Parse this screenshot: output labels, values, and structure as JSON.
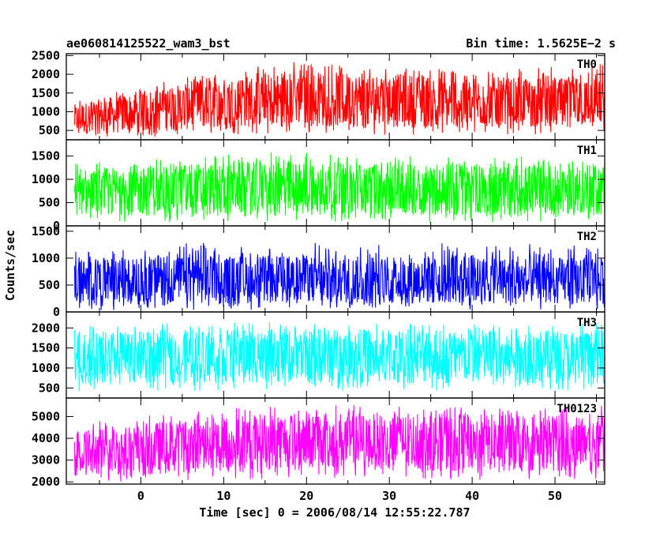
{
  "header": {
    "title": "ae060814125522_wam3_bst",
    "bin_time": "Bin time: 1.5625E−2 s"
  },
  "chart_data": {
    "type": "line",
    "title": "ae060814125522_wam3_bst",
    "xlabel": "Time [sec] 0 = 2006/08/14 12:55:22.787",
    "ylabel": "Counts/sec",
    "xlim": [
      -9,
      56
    ],
    "x_range": [
      -8,
      56
    ],
    "x_ticks": [
      0,
      10,
      20,
      30,
      40,
      50
    ],
    "x_tick_labels": [
      "0",
      "10",
      "20",
      "30",
      "40",
      "50"
    ],
    "grid": false,
    "panels": [
      {
        "name": "TH0",
        "color": "#ff0000",
        "ylim": [
          250,
          2550
        ],
        "y_ticks": [
          500,
          1000,
          1500,
          2000,
          2500
        ],
        "y_tick_labels": [
          "500",
          "1000",
          "1500",
          "2000",
          "2500"
        ],
        "envelope_x": [
          -8,
          0,
          10,
          20,
          30,
          40,
          50,
          56
        ],
        "envelope_low": [
          280,
          300,
          380,
          420,
          380,
          400,
          390,
          450
        ],
        "envelope_mean": [
          800,
          1000,
          1250,
          1350,
          1300,
          1250,
          1230,
          1250
        ],
        "envelope_high": [
          1300,
          1700,
          2100,
          2400,
          2200,
          2150,
          2200,
          2300
        ]
      },
      {
        "name": "TH1",
        "color": "#00ff00",
        "ylim": [
          0,
          1850
        ],
        "y_ticks": [
          0,
          500,
          1000,
          1500
        ],
        "y_tick_labels": [
          "0",
          "500",
          "1000",
          "1500"
        ],
        "envelope_x": [
          -8,
          0,
          10,
          20,
          30,
          40,
          50,
          56
        ],
        "envelope_low": [
          60,
          60,
          80,
          90,
          80,
          80,
          80,
          80
        ],
        "envelope_mean": [
          720,
          760,
          800,
          810,
          790,
          780,
          780,
          780
        ],
        "envelope_high": [
          1350,
          1450,
          1550,
          1600,
          1500,
          1500,
          1500,
          1550
        ]
      },
      {
        "name": "TH2",
        "color": "#0000ff",
        "ylim": [
          0,
          1600
        ],
        "y_ticks": [
          0,
          500,
          1000,
          1500
        ],
        "y_tick_labels": [
          "0",
          "500",
          "1000",
          "1500"
        ],
        "envelope_x": [
          -8,
          0,
          10,
          20,
          30,
          40,
          50,
          56
        ],
        "envelope_low": [
          30,
          40,
          40,
          40,
          40,
          40,
          40,
          40
        ],
        "envelope_mean": [
          560,
          580,
          600,
          600,
          590,
          590,
          580,
          580
        ],
        "envelope_high": [
          1150,
          1250,
          1300,
          1300,
          1250,
          1300,
          1250,
          1250
        ]
      },
      {
        "name": "TH3",
        "color": "#00ffff",
        "ylim": [
          250,
          2400
        ],
        "y_ticks": [
          500,
          1000,
          1500,
          2000
        ],
        "y_tick_labels": [
          "500",
          "1000",
          "1500",
          "2000"
        ],
        "envelope_x": [
          -8,
          0,
          10,
          20,
          30,
          40,
          50,
          56
        ],
        "envelope_low": [
          420,
          420,
          430,
          430,
          430,
          430,
          430,
          430
        ],
        "envelope_mean": [
          1250,
          1280,
          1300,
          1300,
          1290,
          1290,
          1280,
          1280
        ],
        "envelope_high": [
          2050,
          2100,
          2150,
          2150,
          2150,
          2150,
          2150,
          2150
        ]
      },
      {
        "name": "TH0123",
        "color": "#ff00ff",
        "ylim": [
          1900,
          5850
        ],
        "y_ticks": [
          2000,
          3000,
          4000,
          5000
        ],
        "y_tick_labels": [
          "2000",
          "3000",
          "4000",
          "5000"
        ],
        "envelope_x": [
          -8,
          0,
          10,
          20,
          30,
          40,
          50,
          56
        ],
        "envelope_low": [
          2000,
          2000,
          2100,
          2150,
          2100,
          2100,
          2100,
          2100
        ],
        "envelope_mean": [
          3300,
          3500,
          3800,
          3950,
          3850,
          3800,
          3800,
          3800
        ],
        "envelope_high": [
          4700,
          5000,
          5400,
          5600,
          5500,
          5450,
          5450,
          5500
        ]
      }
    ]
  }
}
